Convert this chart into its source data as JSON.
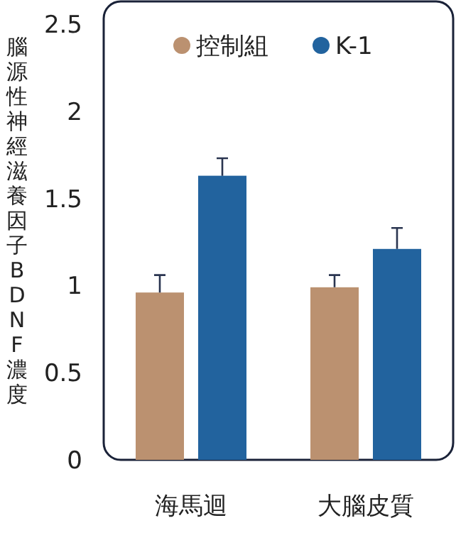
{
  "chart_data": {
    "type": "bar",
    "ylabel": "腦源性神經滋養因子BDNF濃度",
    "categories": [
      "海馬迴",
      "大腦皮質"
    ],
    "series": [
      {
        "name": "控制組",
        "color": "#bb9170",
        "values": [
          0.96,
          0.99
        ],
        "errors": [
          [
            0.96,
            1.06
          ],
          [
            0.99,
            1.06
          ]
        ]
      },
      {
        "name": "K-1",
        "color": "#22639e",
        "values": [
          1.63,
          1.21
        ],
        "errors": [
          [
            1.63,
            1.73
          ],
          [
            1.21,
            1.33
          ]
        ]
      }
    ],
    "ylim": [
      0,
      2.63
    ],
    "yticks": [
      0,
      0.5,
      1,
      1.5,
      2,
      2.5
    ],
    "legend": "top",
    "grid": false
  }
}
